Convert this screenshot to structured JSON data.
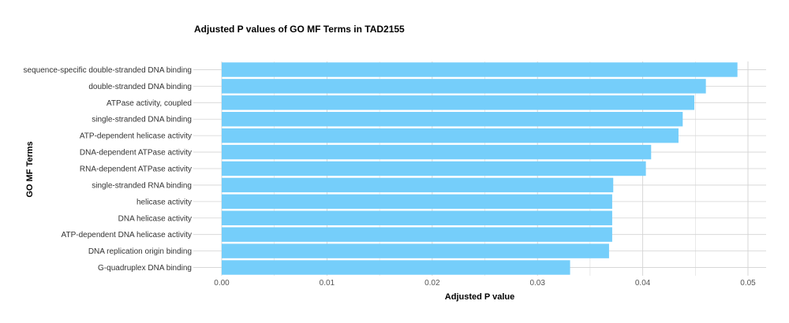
{
  "chart_data": {
    "type": "bar",
    "orientation": "horizontal",
    "title": "Adjusted P values of GO MF Terms in TAD2155",
    "xlabel": "Adjusted P value",
    "ylabel": "GO MF Terms",
    "categories": [
      "sequence-specific double-stranded DNA binding",
      "double-stranded DNA binding",
      "ATPase activity, coupled",
      "single-stranded DNA binding",
      "ATP-dependent helicase activity",
      "DNA-dependent ATPase activity",
      "RNA-dependent ATPase activity",
      "single-stranded RNA binding",
      "helicase activity",
      "DNA helicase activity",
      "ATP-dependent DNA helicase activity",
      "DNA replication origin binding",
      "G-quadruplex DNA binding"
    ],
    "values": [
      0.049,
      0.046,
      0.0449,
      0.0438,
      0.0434,
      0.0408,
      0.0403,
      0.0372,
      0.0371,
      0.0371,
      0.0371,
      0.0368,
      0.0331
    ],
    "xlim": [
      0,
      0.0512
    ],
    "xticks": [
      "0.00",
      "0.01",
      "0.02",
      "0.03",
      "0.04",
      "0.05"
    ],
    "xtick_values": [
      0,
      0.01,
      0.02,
      0.03,
      0.04,
      0.05
    ],
    "grid": true,
    "legend": "none",
    "bar_color": "#75CEFA",
    "grid_color": "#D3D3D3"
  }
}
